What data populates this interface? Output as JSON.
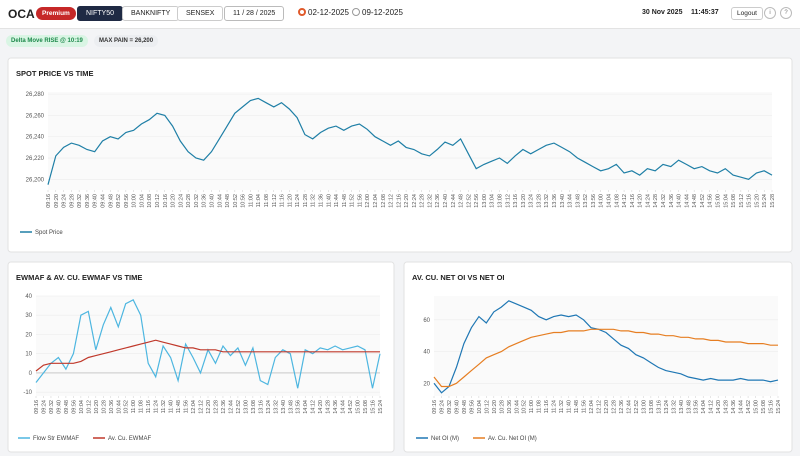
{
  "header": {
    "brand": "OCA",
    "badge": "Premium",
    "tabs": [
      "NIFTY50",
      "BANKNIFTY",
      "SENSEX"
    ],
    "date": "11 / 28 / 2025",
    "expiries": [
      "02-12-2025",
      "09-12-2025"
    ],
    "current_date": "30 Nov 2025",
    "current_time": "11:45:37",
    "logout": "Logout",
    "info": "i",
    "help": "?"
  },
  "status": {
    "delta_move": "Delta Move  RISE @ 10:19",
    "max_pain": "MAX PAIN  = 26,200"
  },
  "chart_data": [
    {
      "type": "line",
      "title": "SPOT PRICE VS TIME",
      "categories": [
        "09:16",
        "09:20",
        "09:24",
        "09:28",
        "09:32",
        "09:36",
        "09:40",
        "09:44",
        "09:48",
        "09:52",
        "09:56",
        "10:00",
        "10:04",
        "10:08",
        "10:12",
        "10:16",
        "10:20",
        "10:24",
        "10:28",
        "10:32",
        "10:36",
        "10:40",
        "10:44",
        "10:48",
        "10:52",
        "10:56",
        "11:00",
        "11:04",
        "11:08",
        "11:12",
        "11:16",
        "11:20",
        "11:24",
        "11:28",
        "11:32",
        "11:36",
        "11:40",
        "11:44",
        "11:48",
        "11:52",
        "11:56",
        "12:00",
        "12:04",
        "12:08",
        "12:12",
        "12:16",
        "12:20",
        "12:24",
        "12:28",
        "12:32",
        "12:36",
        "12:40",
        "12:44",
        "12:48",
        "12:52",
        "12:56",
        "13:00",
        "13:04",
        "13:08",
        "13:12",
        "13:16",
        "13:20",
        "13:24",
        "13:28",
        "13:32",
        "13:36",
        "13:40",
        "13:44",
        "13:48",
        "13:52",
        "13:56",
        "14:00",
        "14:04",
        "14:08",
        "14:12",
        "14:16",
        "14:20",
        "14:24",
        "14:28",
        "14:32",
        "14:36",
        "14:40",
        "14:44",
        "14:48",
        "14:52",
        "14:56",
        "15:00",
        "15:04",
        "15:08",
        "15:12",
        "15:16",
        "15:20",
        "15:24",
        "15:28"
      ],
      "series": [
        {
          "name": "Spot Price",
          "color": "#1f7fa6",
          "values": [
            26195,
            26222,
            26230,
            26234,
            26232,
            26228,
            26226,
            26236,
            26240,
            26238,
            26244,
            26246,
            26252,
            26256,
            26262,
            26260,
            26250,
            26236,
            26226,
            26220,
            26218,
            26226,
            26238,
            26250,
            26262,
            26268,
            26274,
            26276,
            26272,
            26268,
            26272,
            26266,
            26258,
            26242,
            26238,
            26244,
            26248,
            26250,
            26246,
            26250,
            26252,
            26247,
            26240,
            26236,
            26232,
            26236,
            26230,
            26228,
            26224,
            26222,
            26228,
            26235,
            26232,
            26238,
            26224,
            26210,
            26214,
            26217,
            26220,
            26215,
            26222,
            26228,
            26224,
            26228,
            26232,
            26234,
            26230,
            26226,
            26220,
            26216,
            26212,
            26208,
            26210,
            26214,
            26206,
            26208,
            26204,
            26210,
            26208,
            26214,
            26212,
            26218,
            26214,
            26210,
            26212,
            26208,
            26206,
            26210,
            26204,
            26202,
            26200,
            26206,
            26208,
            26204
          ]
        }
      ],
      "ylim": [
        26190,
        26282
      ],
      "yticks": [
        {
          "value": 26200,
          "label": "26,200"
        },
        {
          "value": 26220,
          "label": "26,220"
        },
        {
          "value": 26240,
          "label": "26,240"
        },
        {
          "value": 26260,
          "label": "26,260"
        },
        {
          "value": 26280,
          "label": "26,280"
        }
      ],
      "grid": true,
      "legend": "bottom-left"
    },
    {
      "type": "line",
      "title": "EWMAF & AV. CU. EWMAF VS TIME",
      "categories": [
        "09:16",
        "09:24",
        "09:32",
        "09:40",
        "09:48",
        "09:56",
        "10:04",
        "10:12",
        "10:20",
        "10:28",
        "10:36",
        "10:44",
        "10:52",
        "11:00",
        "11:08",
        "11:16",
        "11:24",
        "11:32",
        "11:40",
        "11:48",
        "11:56",
        "12:04",
        "12:12",
        "12:20",
        "12:28",
        "12:36",
        "12:44",
        "12:52",
        "13:00",
        "13:08",
        "13:16",
        "13:24",
        "13:32",
        "13:40",
        "13:48",
        "13:56",
        "14:04",
        "14:12",
        "14:20",
        "14:28",
        "14:36",
        "14:44",
        "14:52",
        "15:00",
        "15:08",
        "15:16",
        "15:24"
      ],
      "series": [
        {
          "name": "Flow Str EWMAF",
          "color": "#4db6e0",
          "values": [
            -5,
            0,
            5,
            8,
            2,
            10,
            30,
            32,
            12,
            25,
            34,
            24,
            36,
            38,
            30,
            5,
            -2,
            14,
            8,
            -4,
            15,
            8,
            0,
            12,
            5,
            14,
            9,
            13,
            4,
            13,
            -4,
            -6,
            8,
            12,
            10,
            -8,
            12,
            10,
            13,
            12,
            14,
            12,
            13,
            14,
            12,
            -8,
            10
          ]
        },
        {
          "name": "Av. Cu. EWMAF",
          "color": "#c0392b",
          "values": [
            1,
            4,
            5,
            5,
            5,
            5,
            6,
            8,
            9,
            10,
            11,
            12,
            13,
            14,
            15,
            16,
            17,
            16,
            15,
            14,
            13,
            13,
            12,
            12,
            12,
            11,
            11,
            11,
            11,
            11,
            11,
            11,
            11,
            11,
            11,
            11,
            11,
            11,
            11,
            11,
            11,
            11,
            11,
            11,
            11,
            11,
            11
          ]
        }
      ],
      "ylim": [
        -12,
        40
      ],
      "yticks": [
        -10,
        0,
        10,
        20,
        30,
        40
      ],
      "grid": true,
      "legend": "bottom-left"
    },
    {
      "type": "line",
      "title": "AV. CU. NET OI VS NET OI",
      "categories": [
        "09:16",
        "09:24",
        "09:32",
        "09:40",
        "09:48",
        "09:56",
        "10:04",
        "10:12",
        "10:20",
        "10:28",
        "10:36",
        "10:44",
        "10:52",
        "11:00",
        "11:08",
        "11:16",
        "11:24",
        "11:32",
        "11:40",
        "11:48",
        "11:56",
        "12:04",
        "12:12",
        "12:20",
        "12:28",
        "12:36",
        "12:44",
        "12:52",
        "13:00",
        "13:08",
        "13:16",
        "13:24",
        "13:32",
        "13:40",
        "13:48",
        "13:56",
        "14:04",
        "14:12",
        "14:20",
        "14:28",
        "14:36",
        "14:44",
        "14:52",
        "15:00",
        "15:08",
        "15:16",
        "15:24"
      ],
      "series": [
        {
          "name": "Net OI (M)",
          "color": "#1f77b4",
          "values": [
            20,
            14,
            18,
            30,
            45,
            55,
            62,
            58,
            65,
            68,
            72,
            70,
            68,
            66,
            62,
            60,
            62,
            63,
            62,
            63,
            60,
            55,
            54,
            52,
            48,
            44,
            42,
            38,
            36,
            33,
            30,
            28,
            27,
            26,
            24,
            23,
            22,
            23,
            22,
            22,
            22,
            23,
            22,
            22,
            22,
            21,
            22
          ]
        },
        {
          "name": "Av. Cu. Net OI (M)",
          "color": "#e67e22",
          "values": [
            24,
            18,
            18,
            20,
            24,
            28,
            32,
            36,
            38,
            40,
            43,
            45,
            47,
            49,
            50,
            51,
            52,
            52,
            53,
            53,
            53,
            54,
            54,
            54,
            54,
            53,
            53,
            52,
            52,
            51,
            51,
            50,
            50,
            49,
            49,
            48,
            48,
            47,
            47,
            46,
            46,
            46,
            45,
            45,
            45,
            44,
            44
          ]
        }
      ],
      "ylim": [
        12,
        75
      ],
      "yticks": [
        20,
        40,
        60
      ],
      "grid": true,
      "legend": "bottom-left"
    }
  ]
}
